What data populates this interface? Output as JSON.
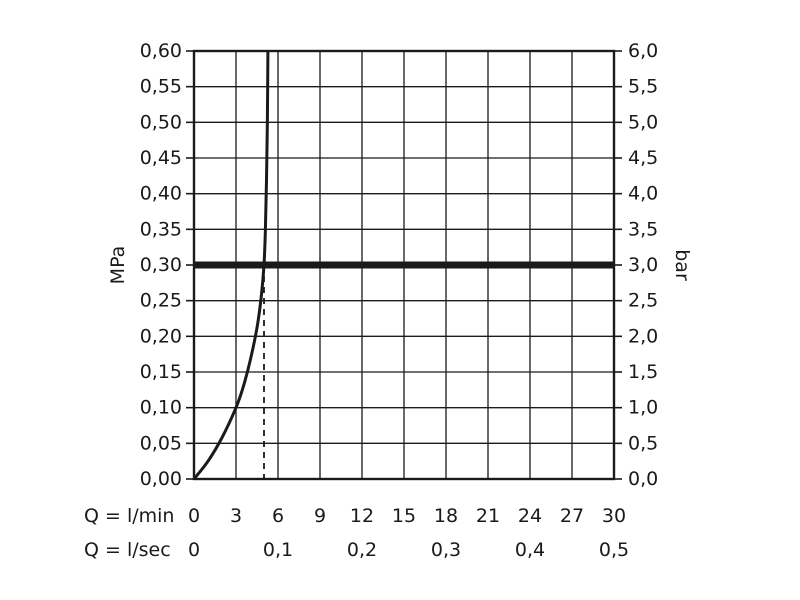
{
  "chart_data": {
    "type": "line",
    "y_left": {
      "label": "MPa",
      "ticks": [
        "0,00",
        "0,05",
        "0,10",
        "0,15",
        "0,20",
        "0,25",
        "0,30",
        "0,35",
        "0,40",
        "0,45",
        "0,50",
        "0,55",
        "0,60"
      ],
      "range": [
        0,
        0.6
      ]
    },
    "y_right": {
      "label": "bar",
      "ticks": [
        "0,0",
        "0,5",
        "1,0",
        "1,5",
        "2,0",
        "2,5",
        "3,0",
        "3,5",
        "4,0",
        "4,5",
        "5,0",
        "5,5",
        "6,0"
      ],
      "range": [
        0,
        6
      ]
    },
    "x_lmin": {
      "label": "Q = l/min",
      "ticks": [
        "0",
        "3",
        "6",
        "9",
        "12",
        "15",
        "18",
        "21",
        "24",
        "27",
        "30"
      ],
      "range": [
        0,
        30
      ]
    },
    "x_lsec": {
      "label": "Q = l/sec",
      "ticks": [
        "0",
        "0,1",
        "0,2",
        "0,3",
        "0,4",
        "0,5"
      ],
      "values": [
        0,
        0.1,
        0.2,
        0.3,
        0.4,
        0.5
      ]
    },
    "reference_pressure_mpa": 0.3,
    "flow_at_reference_lmin": 5,
    "series": [
      {
        "points": [
          [
            0,
            0
          ],
          [
            1,
            0.025
          ],
          [
            2,
            0.058
          ],
          [
            3,
            0.1
          ],
          [
            3.5,
            0.128
          ],
          [
            4,
            0.165
          ],
          [
            4.5,
            0.212
          ],
          [
            4.8,
            0.255
          ],
          [
            5,
            0.3
          ],
          [
            5.1,
            0.35
          ],
          [
            5.18,
            0.42
          ],
          [
            5.24,
            0.5
          ],
          [
            5.28,
            0.6
          ]
        ]
      }
    ],
    "grid": true,
    "colors": {
      "line": "#1a1a1a",
      "grid": "#1a1a1a",
      "background": "#ffffff"
    }
  }
}
